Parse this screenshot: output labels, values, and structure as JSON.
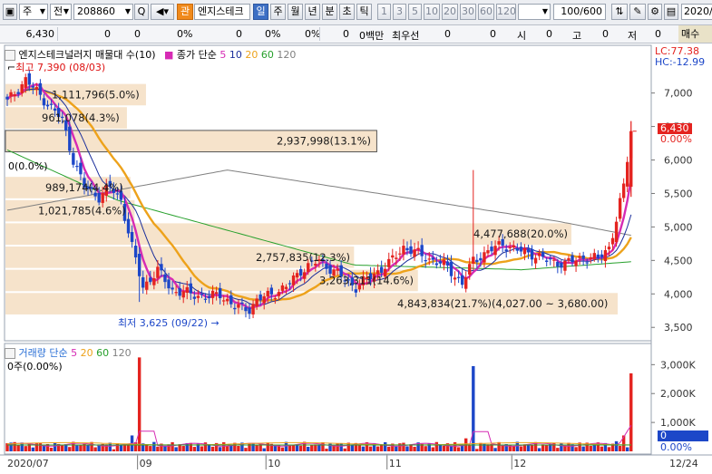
{
  "toolbar": {
    "type_select": "주",
    "exchange_select": "전",
    "code_value": "208860",
    "search_label": "Q",
    "brand_badge": "관",
    "stock_name": "엔지스테크",
    "periods": [
      "일",
      "주",
      "월",
      "년",
      "분",
      "초",
      "틱"
    ],
    "selected_period": "일",
    "intervals": [
      "1",
      "3",
      "5",
      "10",
      "20",
      "30",
      "60",
      "120"
    ],
    "count_value": "100/600",
    "date_value": "2020/"
  },
  "info": {
    "price": "6,430",
    "v1": "0",
    "v1b": "0",
    "p1": "0%",
    "v2": "0",
    "p2": "0%",
    "v3": "0",
    "p3": "0%",
    "krw_label": "0백만",
    "best_ask_label": "최우선",
    "v4": "0",
    "v5": "0",
    "open_label": "시",
    "open_value": "0",
    "high_label": "고",
    "high_value": "0",
    "low_label": "저",
    "low_value": "0",
    "sell_label": "매수"
  },
  "legend": {
    "title": "엔지스테크널러지 매물대 수(10)",
    "ma_label": "종가 단순",
    "ma_periods": [
      "5",
      "10",
      "20",
      "60",
      "120"
    ],
    "lc": "LC:77.38",
    "hc": "HC:-12.99",
    "max_label": "최고 7,390 (08/03)",
    "min_label": "최저 3,625 (09/22)",
    "current_price": "6,430",
    "current_pct": "0.00%",
    "zero_label": "0(0.0%)"
  },
  "volume_legend": {
    "title": "거래량",
    "ma_label": "단순",
    "ma_periods": [
      "5",
      "20",
      "60",
      "120"
    ],
    "zero_label": "0주(0.00%)",
    "current_badge": "0",
    "current_pct": "0.00%"
  },
  "colors": {
    "up": "#e4231f",
    "down": "#1d47c8",
    "ma5": "#d62bb4",
    "ma10": "#1b2f9b",
    "ma20": "#eda21b",
    "ma60": "#27a02c",
    "ma120": "#808080",
    "profile": "#f6e3cb"
  },
  "chart_data": {
    "type": "candlestick",
    "price_axis": {
      "ticks": [
        3500,
        4000,
        4500,
        5000,
        5500,
        6000,
        6500,
        7000
      ],
      "range": [
        3300,
        7550
      ]
    },
    "volume_axis": {
      "ticks": [
        "1,000K",
        "2,000K",
        "3,000K"
      ],
      "values": [
        1000,
        2000,
        3000
      ],
      "unit": "K"
    },
    "x_labels": [
      {
        "label": "2020/07",
        "i": 0
      },
      {
        "label": "09",
        "i": 36
      },
      {
        "label": "10",
        "i": 71
      },
      {
        "label": "11",
        "i": 104
      },
      {
        "label": "12",
        "i": 138
      },
      {
        "label": "12/24",
        "i": 175
      }
    ],
    "volume_profile": [
      {
        "label": "",
        "low": 3500,
        "high": 3700,
        "volume": 0
      },
      {
        "label": "4,843,834(21.7%)(4,027.00 ~ 3,680.00)",
        "low": 3680,
        "high": 4027,
        "volume": 4843834
      },
      {
        "label": "3,263,311(14.6%)",
        "low": 4027,
        "high": 4374,
        "volume": 3263311
      },
      {
        "label": "2,757,835(12.3%)",
        "low": 4374,
        "high": 4721,
        "volume": 2757835
      },
      {
        "label": "4,477,688(20.0%)",
        "low": 4721,
        "high": 5068,
        "volume": 4477688
      },
      {
        "label": "1,021,785(4.6%)",
        "low": 5068,
        "high": 5414,
        "volume": 1021785
      },
      {
        "label": "989,174(4.4%)",
        "low": 5414,
        "high": 5761,
        "volume": 989174
      },
      {
        "label": "0(0.0%)",
        "low": 5761,
        "high": 6108,
        "volume": 0
      },
      {
        "label": "2,937,998(13.1%)",
        "low": 6108,
        "high": 6455,
        "volume": 2937998
      },
      {
        "label": "961,078(4.3%)",
        "low": 6455,
        "high": 6802,
        "volume": 961078
      },
      {
        "label": "1,111,796(5.0%)",
        "low": 6802,
        "high": 7149,
        "volume": 1111796
      }
    ],
    "anchors": [
      [
        0,
        6870
      ],
      [
        5,
        7200
      ],
      [
        10,
        6900
      ],
      [
        15,
        6600
      ],
      [
        18,
        6000
      ],
      [
        21,
        5600
      ],
      [
        25,
        5450
      ],
      [
        28,
        5600
      ],
      [
        31,
        5400
      ],
      [
        34,
        4700
      ],
      [
        37,
        4100
      ],
      [
        41,
        4350
      ],
      [
        45,
        4050
      ],
      [
        50,
        4000
      ],
      [
        55,
        3950
      ],
      [
        58,
        4000
      ],
      [
        62,
        3800
      ],
      [
        66,
        3780
      ],
      [
        68,
        3900
      ],
      [
        72,
        4000
      ],
      [
        76,
        4100
      ],
      [
        80,
        4350
      ],
      [
        85,
        4500
      ],
      [
        90,
        4300
      ],
      [
        95,
        4100
      ],
      [
        100,
        4300
      ],
      [
        104,
        4450
      ],
      [
        108,
        4700
      ],
      [
        112,
        4600
      ],
      [
        116,
        4500
      ],
      [
        120,
        4400
      ],
      [
        124,
        4150
      ],
      [
        127,
        4500
      ],
      [
        130,
        4600
      ],
      [
        135,
        4750
      ],
      [
        139,
        4650
      ],
      [
        143,
        4600
      ],
      [
        147,
        4500
      ],
      [
        152,
        4450
      ],
      [
        157,
        4550
      ],
      [
        161,
        4520
      ],
      [
        164,
        4700
      ],
      [
        166,
        5100
      ],
      [
        168,
        5600
      ],
      [
        170,
        6430
      ]
    ],
    "volume_spikes": [
      [
        36,
        3250
      ],
      [
        127,
        2950
      ],
      [
        170,
        2700
      ]
    ],
    "volume_medium": [
      [
        0,
        280
      ],
      [
        2,
        320
      ],
      [
        34,
        550
      ],
      [
        125,
        450
      ],
      [
        166,
        350
      ],
      [
        168,
        550
      ]
    ]
  }
}
